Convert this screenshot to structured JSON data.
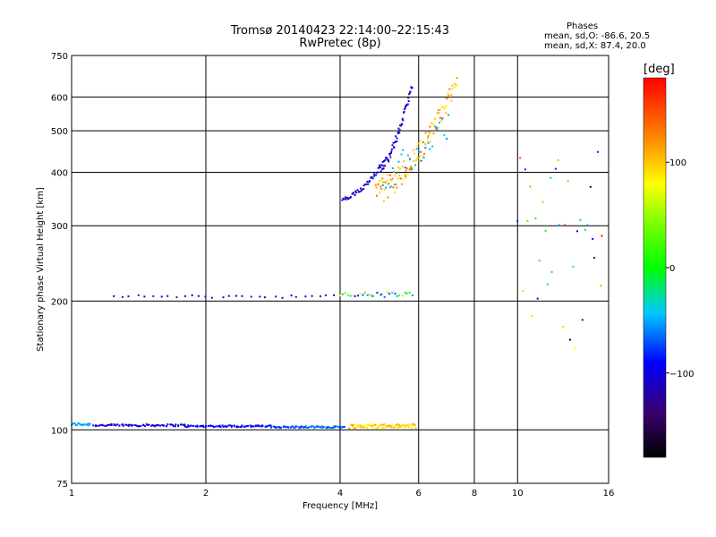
{
  "header": {
    "title_line1": "Tromsø 20140423 22:14:00–22:15:43",
    "title_line2": "RwPretec (8p)"
  },
  "stats": {
    "title": "Phases",
    "o_mode": "mean, sd,O: -86.6, 20.5",
    "x_mode": "mean, sd,X:  87.4, 20.0"
  },
  "colorbar": {
    "unit": "[deg]",
    "ticks": [
      {
        "value": 100,
        "label": "100"
      },
      {
        "value": 0,
        "label": "0"
      },
      {
        "value": -100,
        "label": "−100"
      }
    ],
    "range": [
      -180,
      180
    ]
  },
  "chart_data": {
    "type": "scatter",
    "xlabel": "Frequency [MHz]",
    "ylabel": "Stationary phase Virtual Height [km]",
    "xscale": "log",
    "yscale": "log",
    "xlim": [
      1,
      16
    ],
    "ylim": [
      75,
      750
    ],
    "xticks": [
      {
        "value": 1,
        "label": "1"
      },
      {
        "value": 2,
        "label": "2"
      },
      {
        "value": 4,
        "label": "4"
      },
      {
        "value": 6,
        "label": "6"
      },
      {
        "value": 8,
        "label": "8"
      },
      {
        "value": 10,
        "label": "10"
      },
      {
        "value": 16,
        "label": "16"
      }
    ],
    "yticks": [
      {
        "value": 75,
        "label": "75"
      },
      {
        "value": 100,
        "label": "100"
      },
      {
        "value": 200,
        "label": "200"
      },
      {
        "value": 300,
        "label": "300"
      },
      {
        "value": 400,
        "label": "400"
      },
      {
        "value": 500,
        "label": "500"
      },
      {
        "value": 600,
        "label": "600"
      },
      {
        "value": 750,
        "label": "750"
      }
    ],
    "grid": true,
    "color_dimension": "phase [deg]",
    "point_groups": [
      {
        "x_range": [
          1.0,
          1.1
        ],
        "y_center": 103,
        "y_spread": 0.8,
        "phase_range": [
          -60,
          -45
        ],
        "count": 18
      },
      {
        "x_range": [
          1.12,
          1.8
        ],
        "y_center": 102.5,
        "y_spread": 0.6,
        "phase_range": [
          -115,
          -95
        ],
        "count": 70
      },
      {
        "x_range": [
          1.8,
          2.8
        ],
        "y_center": 102,
        "y_spread": 0.5,
        "phase_range": [
          -100,
          -85
        ],
        "count": 70
      },
      {
        "x_range": [
          2.8,
          4.1
        ],
        "y_center": 101.5,
        "y_spread": 0.5,
        "phase_range": [
          -85,
          -55
        ],
        "count": 70
      },
      {
        "x_range": [
          4.2,
          5.9
        ],
        "y_center": 102,
        "y_spread": 1.2,
        "phase_range": [
          80,
          115
        ],
        "count": 75
      },
      {
        "x_range": [
          1.25,
          3.9
        ],
        "y_center": 205,
        "y_spread": 1.5,
        "phase_range": [
          -115,
          -80
        ],
        "count": 30
      },
      {
        "x_range": [
          4.0,
          5.8
        ],
        "y_center": 207,
        "y_spread": 3,
        "phase_range": [
          -90,
          100
        ],
        "count": 30
      },
      {
        "x_range": [
          4.05,
          4.9
        ],
        "y_center": 345,
        "y_center_end": 410,
        "y_spread": 5,
        "phase_range": [
          -120,
          -95
        ],
        "count": 40
      },
      {
        "x_range": [
          4.9,
          5.8
        ],
        "y_center": 410,
        "y_center_end": 640,
        "y_spread": 10,
        "phase_range": [
          -115,
          -95
        ],
        "count": 60
      },
      {
        "x_range": [
          4.8,
          7.3
        ],
        "y_center": 360,
        "y_center_end": 650,
        "y_spread": 25,
        "phase_range": [
          80,
          140
        ],
        "count": 110
      },
      {
        "x_range": [
          5.0,
          7.0
        ],
        "y_center": 400,
        "y_center_end": 520,
        "y_spread": 35,
        "phase_range": [
          -60,
          -40
        ],
        "count": 30
      },
      {
        "x_range": [
          10.0,
          15.5
        ],
        "y_center": 300,
        "y_spread": 150,
        "phase_range": [
          -180,
          180
        ],
        "count": 35
      }
    ]
  }
}
